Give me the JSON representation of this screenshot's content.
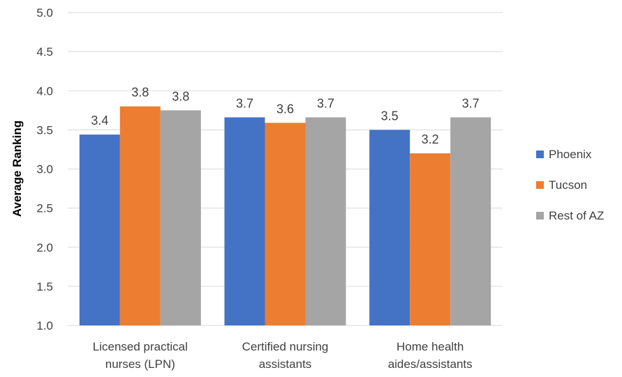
{
  "chart_data": {
    "type": "bar",
    "categories": [
      [
        "Licensed practical",
        "nurses (LPN)"
      ],
      [
        "Certified nursing",
        "assistants"
      ],
      [
        "Home health",
        "aides/assistants"
      ]
    ],
    "series": [
      {
        "name": "Phoenix",
        "color": "#4472c4",
        "values": [
          3.44,
          3.66,
          3.5
        ],
        "labels": [
          "3.4",
          "3.7",
          "3.5"
        ]
      },
      {
        "name": "Tucson",
        "color": "#ed7d31",
        "values": [
          3.8,
          3.59,
          3.2
        ],
        "labels": [
          "3.8",
          "3.6",
          "3.2"
        ]
      },
      {
        "name": "Rest of AZ",
        "color": "#a5a5a5",
        "values": [
          3.75,
          3.66,
          3.66
        ],
        "labels": [
          "3.8",
          "3.7",
          "3.7"
        ]
      }
    ],
    "ylabel": "Average Ranking",
    "ylim": [
      1.0,
      5.0
    ],
    "yticks": [
      "1.0",
      "1.5",
      "2.0",
      "2.5",
      "3.0",
      "3.5",
      "4.0",
      "4.5",
      "5.0"
    ],
    "grid": true,
    "legend": "right"
  }
}
